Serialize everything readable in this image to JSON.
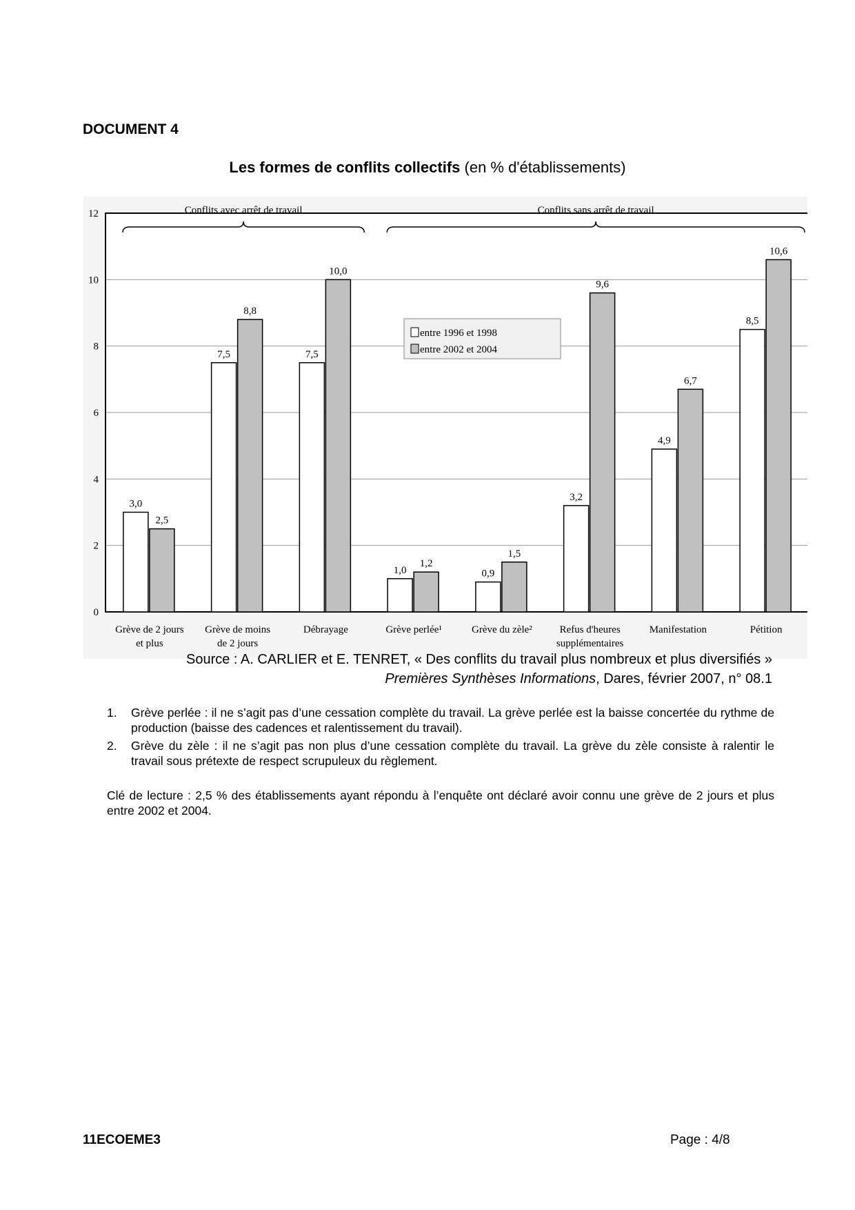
{
  "document_label": "DOCUMENT 4",
  "title": {
    "bold": "Les formes de conflits collectifs",
    "normal": " (en % d'établissements)"
  },
  "chart_data": {
    "type": "bar",
    "title": "",
    "xlabel": "",
    "ylabel": "",
    "ylim": [
      0,
      12
    ],
    "yticks": [
      "0",
      "2",
      "4",
      "6",
      "8",
      "10",
      "12"
    ],
    "grid": true,
    "legend_position": "center-top",
    "categories": [
      [
        "Grève de 2 jours",
        "et plus"
      ],
      [
        "Grève de moins",
        "de 2 jours"
      ],
      [
        "Débrayage"
      ],
      [
        "Grève perlée¹"
      ],
      [
        "Grève du zèle²"
      ],
      [
        "Refus d'heures",
        "supplémentaires"
      ],
      [
        "Manifestation"
      ],
      [
        "Pétition"
      ]
    ],
    "series": [
      {
        "name": "entre 1996 et 1998",
        "color": "#ffffff",
        "values": [
          3.0,
          7.5,
          7.5,
          1.0,
          0.9,
          3.2,
          4.9,
          8.5
        ],
        "labels": [
          "3,0",
          "7,5",
          "7,5",
          "1,0",
          "0,9",
          "3,2",
          "4,9",
          "8,5"
        ]
      },
      {
        "name": "entre 2002 et 2004",
        "color": "#c0c0c0",
        "values": [
          2.5,
          8.8,
          10.0,
          1.2,
          1.5,
          9.6,
          6.7,
          10.6
        ],
        "labels": [
          "2,5",
          "8,8",
          "10,0",
          "1,2",
          "1,5",
          "9,6",
          "6,7",
          "10,6"
        ]
      }
    ],
    "annotations": [
      {
        "text": "Conflits avec arrêt de travail",
        "spans_categories": [
          0,
          2
        ]
      },
      {
        "text": "Conflits sans arrêt de travail",
        "spans_categories": [
          3,
          7
        ]
      }
    ]
  },
  "source": {
    "line1": "Source : A. CARLIER et E. TENRET, « Des conflits du travail plus nombreux et plus diversifiés »",
    "line2_italic": "Premières Synthèses Informations",
    "line2_rest": ", Dares, février 2007, n° 08.1"
  },
  "notes": [
    {
      "num": "1.",
      "text": "Grève perlée : il ne s’agit pas d’une cessation complète du travail. La grève perlée est la baisse concertée du rythme de production (baisse des cadences et ralentissement du travail)."
    },
    {
      "num": "2.",
      "text": "Grève du zèle : il ne s’agit pas non plus d’une cessation complète du travail. La grève du zèle consiste à ralentir le travail sous prétexte de respect scrupuleux du règlement."
    }
  ],
  "key_reading": "Clé de lecture : 2,5 % des établissements ayant répondu à l’enquête ont déclaré avoir connu une grève de 2 jours et plus entre 2002 et 2004.",
  "footer": {
    "code": "11ECOEME3",
    "page": "Page : 4/8"
  }
}
